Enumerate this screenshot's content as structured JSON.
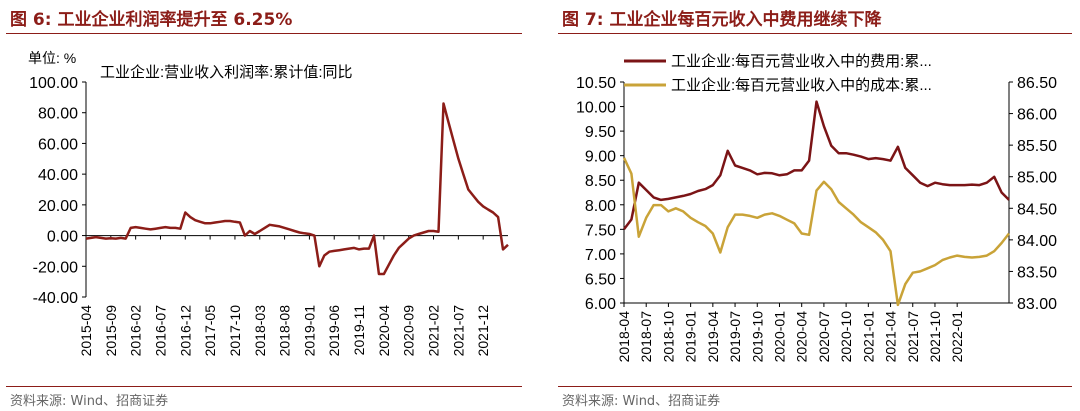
{
  "charts": {
    "left_title": "图 6: 工业企业利润率提升至 6.25%",
    "left_source": "资料来源: Wind、招商证券",
    "right_title": "图 7: 工业企业每百元收入中费用继续下降",
    "right_source": "资料来源: Wind、招商证券"
  },
  "chart_data": [
    {
      "type": "line",
      "title": "图 6: 工业企业利润率提升至 6.25%",
      "unit_label": "单位: %",
      "legend": "工业企业:营业收入利润率:累计值:同比",
      "ylim": [
        -40,
        100
      ],
      "y_ticks": [
        "100.00",
        "80.00",
        "60.00",
        "40.00",
        "20.00",
        "0.00",
        "-20.00",
        "-40.00"
      ],
      "x_ticks": [
        "2015-04",
        "2015-09",
        "2016-02",
        "2016-07",
        "2016-12",
        "2017-05",
        "2017-10",
        "2018-03",
        "2018-08",
        "2019-01",
        "2019-06",
        "2019-11",
        "2020-04",
        "2020-09",
        "2021-02",
        "2021-07",
        "2021-12"
      ],
      "series_color": "#8c1d18",
      "x_start": "2015-04",
      "series": [
        {
          "name": "工业企业:营业收入利润率:累计值:同比",
          "values": [
            -2,
            -1.5,
            -1,
            -1.5,
            -2,
            -1.8,
            -2,
            -1.5,
            -2,
            5,
            5.5,
            5,
            4.5,
            4,
            4.5,
            5,
            5.5,
            5,
            5,
            4.5,
            15,
            12,
            10,
            9,
            8,
            8,
            8.5,
            9,
            9.5,
            9.5,
            9,
            8.5,
            0,
            3,
            1,
            3,
            5,
            7,
            6.5,
            6,
            5,
            4,
            3,
            2,
            1.5,
            1,
            0,
            -20,
            -13,
            -10.5,
            -10,
            -9.5,
            -9,
            -8.5,
            -8,
            -9,
            -8.5,
            -8.5,
            0,
            -25,
            -25,
            -19,
            -13,
            -8,
            -5,
            -2,
            0,
            1,
            2,
            3,
            3,
            2.5,
            86,
            74,
            62,
            50,
            40,
            30,
            26,
            22,
            19,
            17,
            15,
            12,
            -9,
            -6
          ]
        }
      ]
    },
    {
      "type": "line",
      "title": "图 7: 工业企业每百元收入中费用继续下降",
      "legend": [
        "工业企业:每百元营业收入中的费用:累...",
        "工业企业:每百元营业收入中的成本:累..."
      ],
      "ylim_left": [
        6.0,
        10.5
      ],
      "ylim_right": [
        83.0,
        86.5
      ],
      "y_ticks_left": [
        "10.50",
        "10.00",
        "9.50",
        "9.00",
        "8.50",
        "8.00",
        "7.50",
        "7.00",
        "6.50",
        "6.00"
      ],
      "y_ticks_right": [
        "86.50",
        "86.00",
        "85.50",
        "85.00",
        "84.50",
        "84.00",
        "83.50",
        "83.00"
      ],
      "x_ticks": [
        "2018-04",
        "2018-07",
        "2018-10",
        "2019-01",
        "2019-04",
        "2019-07",
        "2019-10",
        "2020-01",
        "2020-04",
        "2020-07",
        "2020-10",
        "2021-01",
        "2021-04",
        "2021-07",
        "2021-10",
        "2022-01"
      ],
      "x_start": "2018-04",
      "series": [
        {
          "name": "工业企业:每百元营业收入中的费用:累...",
          "axis": "left",
          "color": "#7b1416",
          "values": [
            7.5,
            7.7,
            8.45,
            8.3,
            8.15,
            8.1,
            8.12,
            8.15,
            8.18,
            8.22,
            8.28,
            8.32,
            8.4,
            8.6,
            9.1,
            8.8,
            8.75,
            8.7,
            8.62,
            8.65,
            8.64,
            8.6,
            8.62,
            8.7,
            8.7,
            8.9,
            10.1,
            9.6,
            9.2,
            9.05,
            9.05,
            9.02,
            8.98,
            8.93,
            8.95,
            8.93,
            8.9,
            9.18,
            8.75,
            8.6,
            8.45,
            8.38,
            8.45,
            8.42,
            8.4,
            8.4,
            8.4,
            8.41,
            8.4,
            8.45,
            8.57,
            8.25,
            8.1
          ]
        },
        {
          "name": "工业企业:每百元营业收入中的成本:累...",
          "axis": "right",
          "color": "#c9a338",
          "values": [
            85.3,
            85.05,
            84.05,
            84.35,
            84.55,
            84.55,
            84.45,
            84.5,
            84.45,
            84.35,
            84.28,
            84.22,
            84.1,
            83.8,
            84.2,
            84.4,
            84.4,
            84.38,
            84.35,
            84.4,
            84.42,
            84.38,
            84.32,
            84.26,
            84.1,
            84.08,
            84.78,
            84.92,
            84.8,
            84.6,
            84.5,
            84.4,
            84.28,
            84.2,
            84.12,
            84.0,
            83.82,
            82.97,
            83.3,
            83.48,
            83.5,
            83.55,
            83.6,
            83.68,
            83.72,
            83.75,
            83.73,
            83.72,
            83.73,
            83.75,
            83.82,
            83.95,
            84.1
          ]
        }
      ]
    }
  ]
}
